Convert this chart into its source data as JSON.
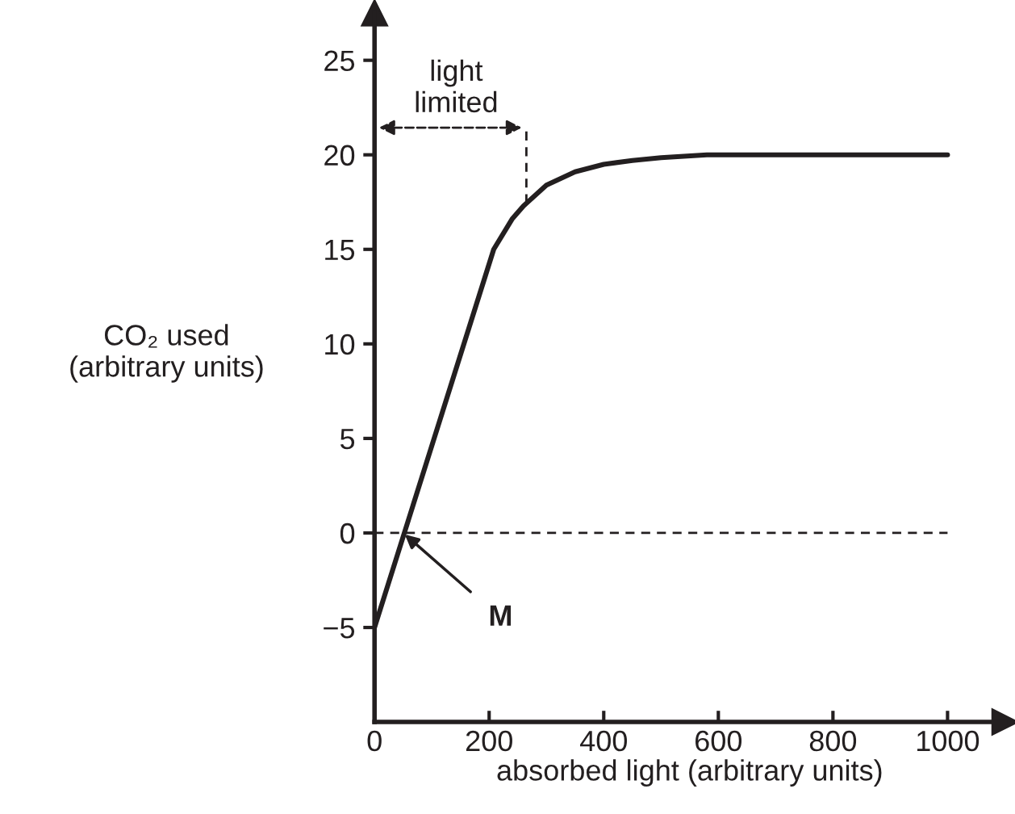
{
  "chart_data": {
    "type": "line",
    "ylabel": "CO₂ used\n(arbitrary units)",
    "xlabel": "absorbed light (arbitrary units)",
    "x": [
      0,
      208,
      240,
      260,
      300,
      350,
      400,
      450,
      500,
      580,
      1000
    ],
    "series": [
      {
        "color": "#231f20",
        "values": [
          -5,
          15,
          16.6,
          17.3,
          18.4,
          19.1,
          19.5,
          19.7,
          19.85,
          20,
          20
        ]
      }
    ],
    "xlim": [
      0,
      1100
    ],
    "ylim": [
      -10,
      27.5
    ],
    "xticks": [
      0,
      200,
      400,
      600,
      800,
      1000
    ],
    "yticks": [
      -5,
      0,
      5,
      10,
      15,
      20,
      25
    ],
    "ref_lines": [
      {
        "axis": "y",
        "value": 0,
        "line_style": "dashed",
        "color": "#231f20"
      },
      {
        "axis": "x",
        "value": 265,
        "label": "light limited",
        "line_style": "dashed",
        "color": "#231f20"
      }
    ],
    "annotations": [
      {
        "text": "M",
        "x": 50,
        "y": 0
      }
    ],
    "grid": false,
    "legend": false,
    "marker": "none",
    "line_style": "solid"
  }
}
